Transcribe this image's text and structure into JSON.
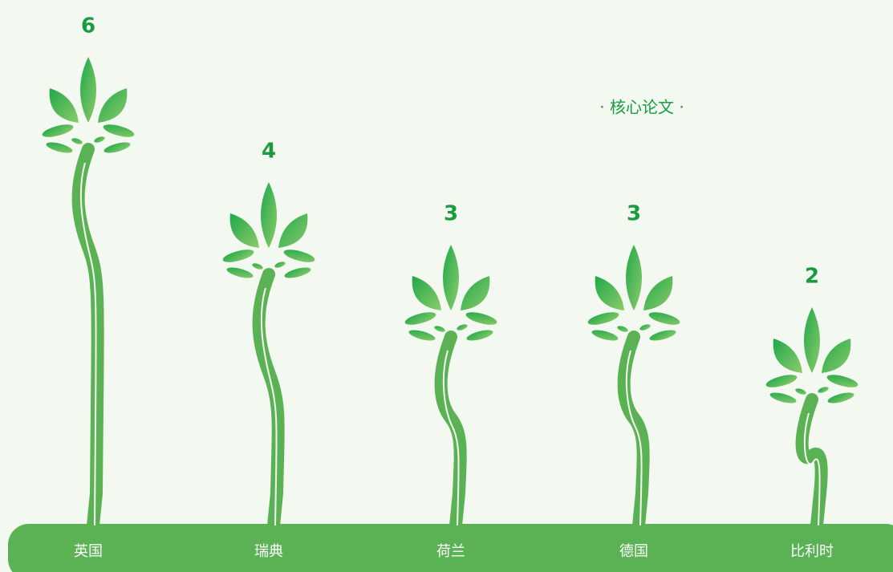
{
  "chart_data": {
    "type": "pictograph",
    "title": "· 核心论文 ·",
    "categories": [
      "英国",
      "瑞典",
      "荷兰",
      "德国",
      "比利时"
    ],
    "values": [
      6,
      4,
      3,
      3,
      2
    ],
    "color": "#5bb254"
  }
}
